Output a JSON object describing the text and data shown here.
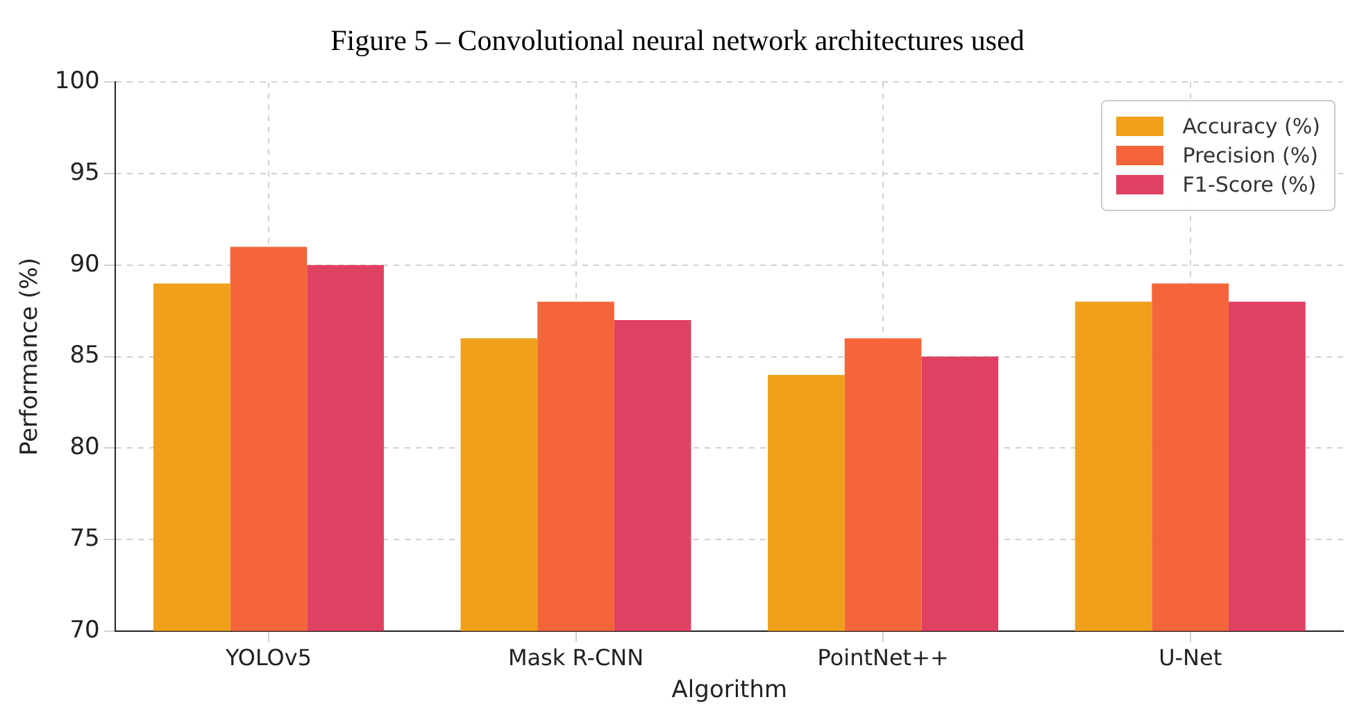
{
  "chart_data": {
    "type": "bar",
    "title": "Figure 5 – Convolutional neural network architectures used",
    "xlabel": "Algorithm",
    "ylabel": "Performance (%)",
    "categories": [
      "YOLOv5",
      "Mask R-CNN",
      "PointNet++",
      "U-Net"
    ],
    "series": [
      {
        "name": "Accuracy (%)",
        "color": "#f0a01a",
        "values": [
          89,
          86,
          84,
          88
        ]
      },
      {
        "name": "Precision (%)",
        "color": "#f5653a",
        "values": [
          91,
          88,
          86,
          89
        ]
      },
      {
        "name": "F1-Score (%)",
        "color": "#e04062",
        "values": [
          90,
          87,
          85,
          88
        ]
      }
    ],
    "ylim": [
      70,
      100
    ],
    "yticks": [
      70,
      75,
      80,
      85,
      90,
      95,
      100
    ],
    "grid": true,
    "legend": "top right"
  }
}
